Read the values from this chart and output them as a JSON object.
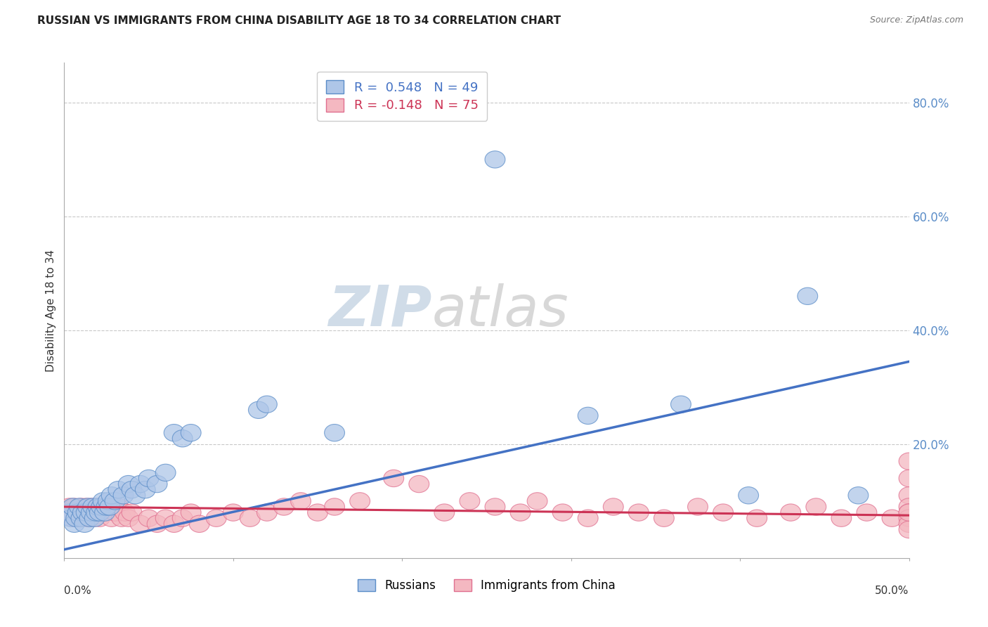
{
  "title": "RUSSIAN VS IMMIGRANTS FROM CHINA DISABILITY AGE 18 TO 34 CORRELATION CHART",
  "source": "Source: ZipAtlas.com",
  "ylabel": "Disability Age 18 to 34",
  "legend_title_blue": "R =  0.548   N = 49",
  "legend_title_pink": "R = -0.148   N = 75",
  "blue_color": "#aec6e8",
  "pink_color": "#f4b8c1",
  "blue_edge_color": "#5b8dc8",
  "pink_edge_color": "#e07090",
  "blue_line_color": "#4472c4",
  "pink_line_color": "#cc3355",
  "russians_x": [
    0.003,
    0.004,
    0.005,
    0.006,
    0.007,
    0.008,
    0.009,
    0.01,
    0.011,
    0.012,
    0.013,
    0.014,
    0.015,
    0.016,
    0.017,
    0.018,
    0.019,
    0.02,
    0.021,
    0.022,
    0.023,
    0.024,
    0.025,
    0.026,
    0.027,
    0.028,
    0.03,
    0.032,
    0.035,
    0.038,
    0.04,
    0.042,
    0.045,
    0.048,
    0.05,
    0.055,
    0.06,
    0.065,
    0.07,
    0.075,
    0.115,
    0.12,
    0.16,
    0.255,
    0.31,
    0.365,
    0.405,
    0.44,
    0.47
  ],
  "russians_y": [
    0.08,
    0.07,
    0.09,
    0.06,
    0.07,
    0.08,
    0.09,
    0.07,
    0.08,
    0.06,
    0.08,
    0.09,
    0.07,
    0.08,
    0.09,
    0.07,
    0.08,
    0.09,
    0.08,
    0.09,
    0.1,
    0.08,
    0.09,
    0.1,
    0.09,
    0.11,
    0.1,
    0.12,
    0.11,
    0.13,
    0.12,
    0.11,
    0.13,
    0.12,
    0.14,
    0.13,
    0.15,
    0.22,
    0.21,
    0.22,
    0.26,
    0.27,
    0.22,
    0.7,
    0.25,
    0.27,
    0.11,
    0.46,
    0.11
  ],
  "china_x": [
    0.003,
    0.004,
    0.005,
    0.006,
    0.007,
    0.008,
    0.009,
    0.01,
    0.011,
    0.012,
    0.013,
    0.014,
    0.015,
    0.016,
    0.017,
    0.018,
    0.019,
    0.02,
    0.021,
    0.022,
    0.024,
    0.026,
    0.028,
    0.03,
    0.032,
    0.034,
    0.036,
    0.038,
    0.04,
    0.045,
    0.05,
    0.055,
    0.06,
    0.065,
    0.07,
    0.075,
    0.08,
    0.09,
    0.1,
    0.11,
    0.12,
    0.13,
    0.14,
    0.15,
    0.16,
    0.175,
    0.195,
    0.21,
    0.225,
    0.24,
    0.255,
    0.27,
    0.28,
    0.295,
    0.31,
    0.325,
    0.34,
    0.355,
    0.375,
    0.39,
    0.41,
    0.43,
    0.445,
    0.46,
    0.475,
    0.49,
    0.5,
    0.5,
    0.5,
    0.5,
    0.5,
    0.5,
    0.5,
    0.5,
    0.5
  ],
  "china_y": [
    0.09,
    0.08,
    0.07,
    0.09,
    0.08,
    0.07,
    0.08,
    0.09,
    0.07,
    0.08,
    0.09,
    0.07,
    0.08,
    0.09,
    0.07,
    0.08,
    0.09,
    0.08,
    0.07,
    0.09,
    0.08,
    0.09,
    0.07,
    0.08,
    0.09,
    0.07,
    0.08,
    0.07,
    0.08,
    0.06,
    0.07,
    0.06,
    0.07,
    0.06,
    0.07,
    0.08,
    0.06,
    0.07,
    0.08,
    0.07,
    0.08,
    0.09,
    0.1,
    0.08,
    0.09,
    0.1,
    0.14,
    0.13,
    0.08,
    0.1,
    0.09,
    0.08,
    0.1,
    0.08,
    0.07,
    0.09,
    0.08,
    0.07,
    0.09,
    0.08,
    0.07,
    0.08,
    0.09,
    0.07,
    0.08,
    0.07,
    0.17,
    0.14,
    0.11,
    0.09,
    0.08,
    0.07,
    0.06,
    0.05,
    0.08
  ],
  "blue_line_x": [
    0.0,
    0.5
  ],
  "blue_line_y": [
    0.015,
    0.345
  ],
  "pink_line_x": [
    0.0,
    0.5
  ],
  "pink_line_y": [
    0.09,
    0.075
  ],
  "bg_color": "#ffffff",
  "grid_color": "#c8c8c8",
  "xlim": [
    0.0,
    0.5
  ],
  "ylim": [
    0.0,
    0.87
  ],
  "ytick_vals": [
    0.2,
    0.4,
    0.6,
    0.8
  ],
  "ytick_labels": [
    "20.0%",
    "40.0%",
    "60.0%",
    "80.0%"
  ],
  "right_tick_color": "#5b8dc8"
}
